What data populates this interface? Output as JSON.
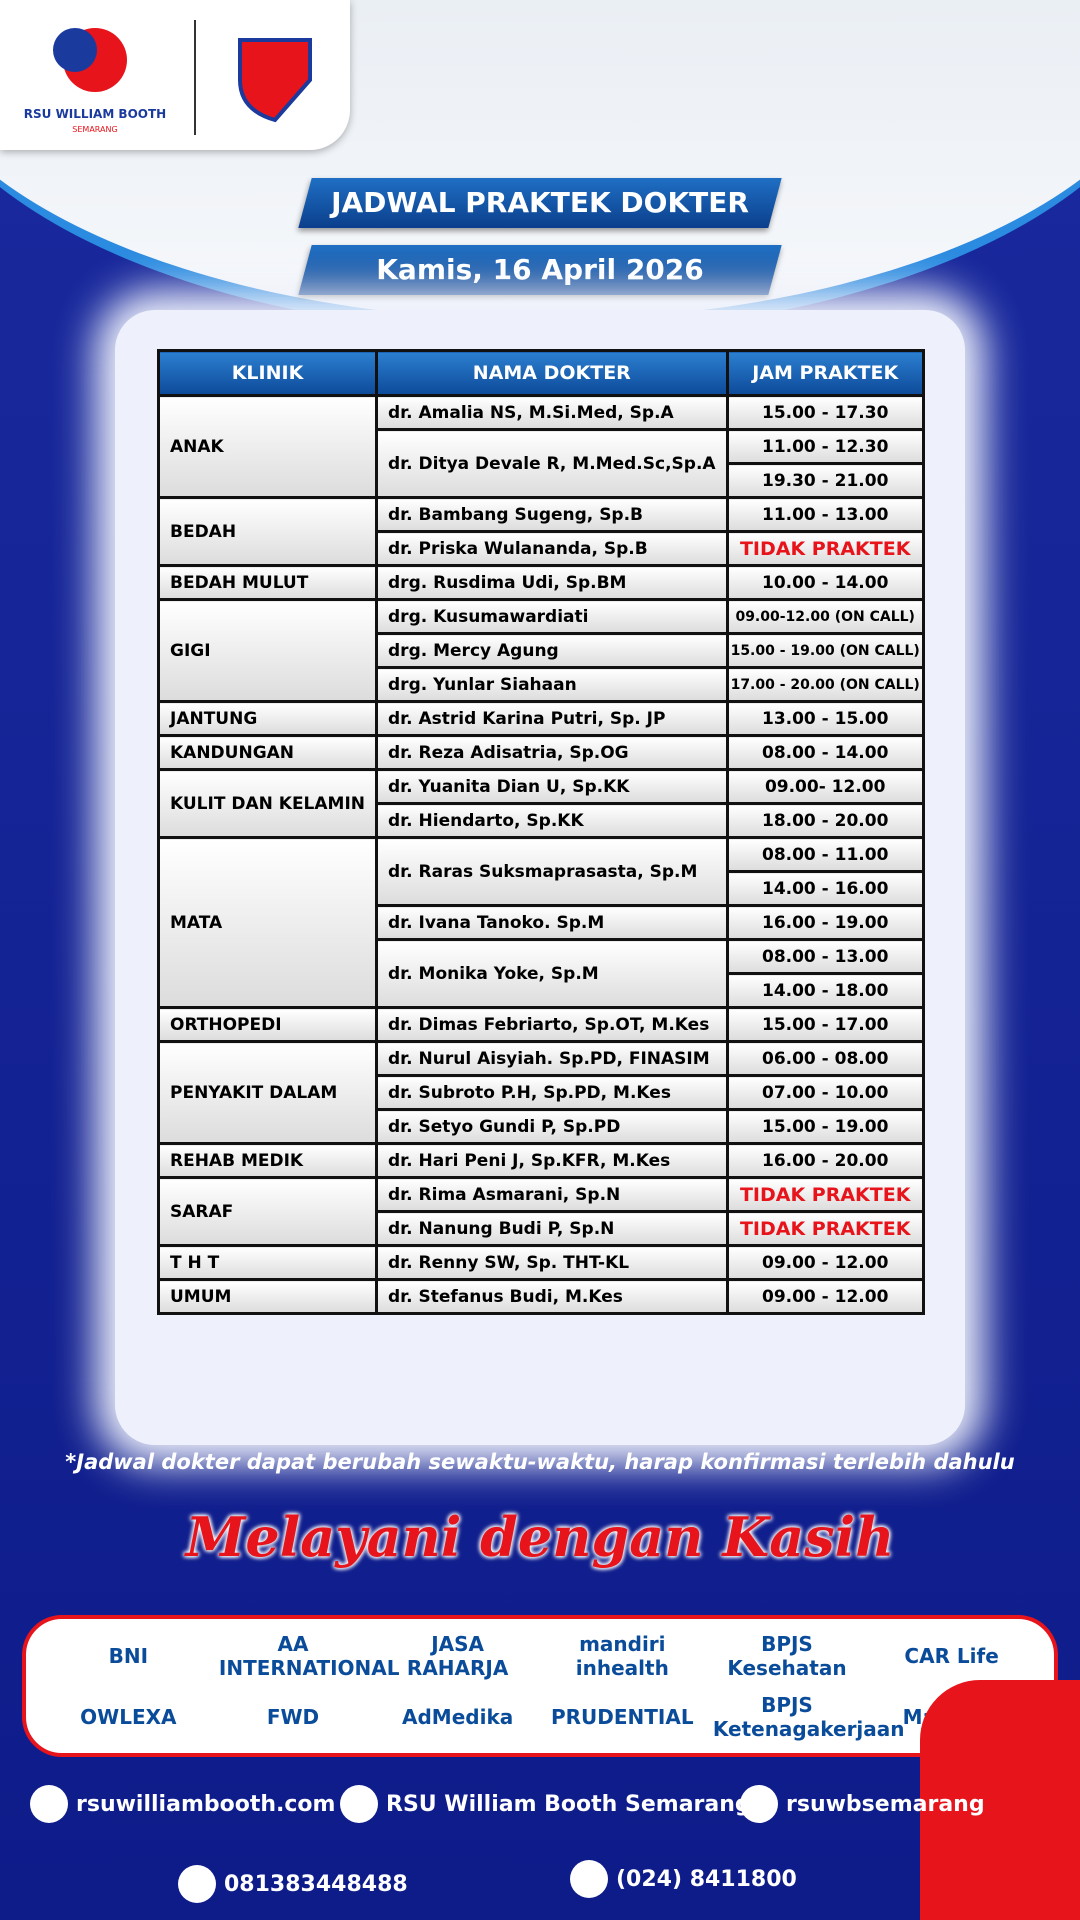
{
  "header": {
    "hospital": "RSU WILLIAM BOOTH",
    "city": "SEMARANG",
    "title": "JADWAL PRAKTEK DOKTER",
    "date": "Kamis, 16 April 2026"
  },
  "table": {
    "columns": [
      "KLINIK",
      "NAMA DOKTER",
      "JAM PRAKTEK"
    ],
    "clinics": [
      {
        "name": "ANAK",
        "doctors": [
          {
            "name": "dr. Amalia NS, M.Si.Med, Sp.A",
            "hours": [
              "15.00 - 17.30"
            ]
          },
          {
            "name": "dr. Ditya Devale R, M.Med.Sc,Sp.A",
            "hours": [
              "11.00 - 12.30",
              "19.30 - 21.00"
            ]
          }
        ]
      },
      {
        "name": "BEDAH",
        "doctors": [
          {
            "name": "dr. Bambang Sugeng, Sp.B",
            "hours": [
              "11.00 - 13.00"
            ]
          },
          {
            "name": "dr. Priska Wulananda, Sp.B",
            "hours": [
              {
                "text": "TIDAK PRAKTEK",
                "color": "#e8141b"
              }
            ]
          }
        ]
      },
      {
        "name": "BEDAH MULUT",
        "doctors": [
          {
            "name": "drg. Rusdima Udi, Sp.BM",
            "hours": [
              "10.00 - 14.00"
            ]
          }
        ]
      },
      {
        "name": "GIGI",
        "doctors": [
          {
            "name": "drg. Kusumawardiati",
            "hours": [
              "09.00-12.00 (ON CALL)"
            ]
          },
          {
            "name": "drg. Mercy Agung",
            "hours": [
              "15.00 - 19.00 (ON CALL)"
            ]
          },
          {
            "name": "drg. Yunlar Siahaan",
            "hours": [
              "17.00 - 20.00 (ON CALL)"
            ]
          }
        ]
      },
      {
        "name": "JANTUNG",
        "doctors": [
          {
            "name": "dr. Astrid Karina Putri, Sp. JP",
            "hours": [
              "13.00 - 15.00"
            ]
          }
        ]
      },
      {
        "name": "KANDUNGAN",
        "doctors": [
          {
            "name": "dr. Reza Adisatria, Sp.OG",
            "hours": [
              "08.00 - 14.00"
            ]
          }
        ]
      },
      {
        "name": "KULIT DAN KELAMIN",
        "doctors": [
          {
            "name": "dr. Yuanita Dian U, Sp.KK",
            "hours": [
              "09.00- 12.00"
            ]
          },
          {
            "name": "dr. Hiendarto, Sp.KK",
            "hours": [
              "18.00 - 20.00"
            ]
          }
        ]
      },
      {
        "name": "MATA",
        "doctors": [
          {
            "name": "dr. Raras Suksmaprasasta, Sp.M",
            "hours": [
              "08.00 - 11.00",
              "14.00 - 16.00"
            ]
          },
          {
            "name": "dr. Ivana Tanoko. Sp.M",
            "hours": [
              "16.00 - 19.00"
            ]
          },
          {
            "name": "dr. Monika Yoke, Sp.M",
            "hours": [
              "08.00 - 13.00",
              "14.00 - 18.00"
            ]
          }
        ]
      },
      {
        "name": "ORTHOPEDI",
        "doctors": [
          {
            "name": "dr. Dimas Febriarto, Sp.OT, M.Kes",
            "hours": [
              "15.00 - 17.00"
            ]
          }
        ]
      },
      {
        "name": "PENYAKIT DALAM",
        "doctors": [
          {
            "name": "dr. Nurul Aisyiah. Sp.PD, FINASIM",
            "hours": [
              "06.00 - 08.00"
            ]
          },
          {
            "name": "dr. Subroto P.H, Sp.PD, M.Kes",
            "hours": [
              "07.00 - 10.00"
            ]
          },
          {
            "name": "dr. Setyo Gundi P, Sp.PD",
            "hours": [
              "15.00 - 19.00"
            ]
          }
        ]
      },
      {
        "name": "REHAB MEDIK",
        "doctors": [
          {
            "name": "dr. Hari Peni J, Sp.KFR, M.Kes",
            "hours": [
              "16.00 - 20.00"
            ]
          }
        ]
      },
      {
        "name": "SARAF",
        "doctors": [
          {
            "name": "dr. Rima Asmarani, Sp.N",
            "hours": [
              {
                "text": "TIDAK PRAKTEK",
                "color": "#e8141b"
              }
            ]
          },
          {
            "name": "dr. Nanung Budi P, Sp.N",
            "hours": [
              {
                "text": "TIDAK PRAKTEK",
                "color": "#e8141b"
              }
            ]
          }
        ]
      },
      {
        "name": "T H T",
        "doctors": [
          {
            "name": "dr. Renny SW, Sp. THT-KL",
            "hours": [
              "09.00 - 12.00"
            ]
          }
        ]
      },
      {
        "name": "UMUM",
        "doctors": [
          {
            "name": "dr. Stefanus Budi, M.Kes",
            "hours": [
              "09.00 - 12.00"
            ]
          }
        ]
      }
    ]
  },
  "note": "*Jadwal dokter dapat berubah sewaktu-waktu, harap konfirmasi terlebih dahulu",
  "tagline": "Melayani dengan Kasih",
  "partners": [
    "BNI",
    "AA INTERNATIONAL",
    "JASA RAHARJA",
    "mandiri inhealth",
    "BPJS Kesehatan",
    "CAR Life",
    "OWLEXA",
    "FWD",
    "AdMedika",
    "PRUDENTIAL",
    "BPJS Ketenagakerjaan",
    "Manulife"
  ],
  "footer": {
    "website": "rsuwilliambooth.com",
    "facebook": "RSU William Booth Semarang",
    "instagram": "rsuwbsemarang",
    "whatsapp": "081383448488",
    "phone": "(024) 8411800"
  }
}
